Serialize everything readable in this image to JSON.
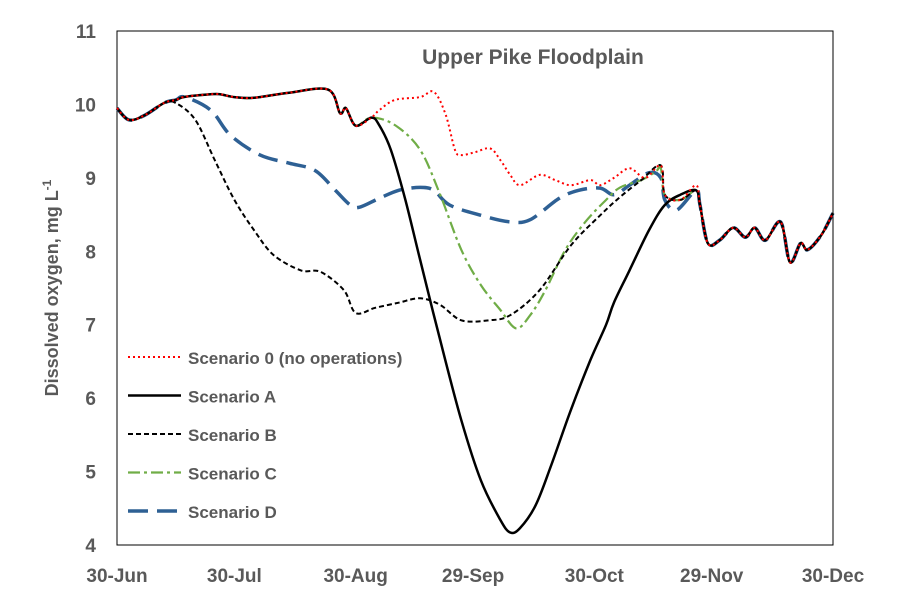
{
  "chart_data": {
    "type": "line",
    "title": "Upper Pike Floodplain",
    "xlabel": "",
    "ylabel": "Dissolved oxygen, mg L",
    "ylabel_superscript": "-1",
    "ylim": [
      4,
      11
    ],
    "yticks": [
      4,
      5,
      6,
      7,
      8,
      9,
      10,
      11
    ],
    "xlim": [
      0,
      183
    ],
    "x_unit": "days since 30-Jun",
    "xticks": [
      {
        "day": 0,
        "label": "30-Jun"
      },
      {
        "day": 30,
        "label": "30-Jul"
      },
      {
        "day": 61,
        "label": "30-Aug"
      },
      {
        "day": 91,
        "label": "29-Sep"
      },
      {
        "day": 122,
        "label": "30-Oct"
      },
      {
        "day": 152,
        "label": "29-Nov"
      },
      {
        "day": 183,
        "label": "30-Dec"
      }
    ],
    "grid": false,
    "legend_position": "left",
    "series": [
      {
        "name": "Scenario 0 (no operations)",
        "color": "#FF0000",
        "style": "dotted",
        "points": [
          [
            0,
            9.95
          ],
          [
            3,
            9.79
          ],
          [
            7,
            9.85
          ],
          [
            12,
            10.02
          ],
          [
            15,
            10.06
          ],
          [
            17,
            10.1
          ],
          [
            22,
            10.13
          ],
          [
            26,
            10.14
          ],
          [
            30,
            10.1
          ],
          [
            35,
            10.09
          ],
          [
            44,
            10.16
          ],
          [
            54,
            10.2
          ],
          [
            57,
            9.88
          ],
          [
            58.5,
            9.95
          ],
          [
            61,
            9.71
          ],
          [
            65,
            9.82
          ],
          [
            67,
            9.92
          ],
          [
            71,
            10.06
          ],
          [
            77.5,
            10.1
          ],
          [
            81,
            10.17
          ],
          [
            84,
            9.86
          ],
          [
            86.4,
            9.38
          ],
          [
            88,
            9.31
          ],
          [
            91.5,
            9.35
          ],
          [
            95.4,
            9.4
          ],
          [
            98,
            9.24
          ],
          [
            100.5,
            9.04
          ],
          [
            103,
            8.9
          ],
          [
            108,
            9.04
          ],
          [
            112,
            8.97
          ],
          [
            116,
            8.9
          ],
          [
            121,
            8.97
          ],
          [
            123.5,
            8.9
          ],
          [
            127,
            9.0
          ],
          [
            131,
            9.13
          ],
          [
            135,
            9.0
          ],
          [
            139,
            9.17
          ],
          [
            140,
            8.77
          ],
          [
            144,
            8.7
          ],
          [
            148,
            8.9
          ],
          [
            149,
            8.63
          ],
          [
            151,
            8.11
          ],
          [
            154,
            8.15
          ],
          [
            157.5,
            8.32
          ],
          [
            160.6,
            8.19
          ],
          [
            163,
            8.32
          ],
          [
            165.7,
            8.15
          ],
          [
            169.6,
            8.4
          ],
          [
            172,
            7.85
          ],
          [
            174.7,
            8.11
          ],
          [
            176.5,
            8.02
          ],
          [
            180,
            8.22
          ],
          [
            183,
            8.52
          ]
        ]
      },
      {
        "name": "Scenario A",
        "color": "#000000",
        "style": "solid",
        "points": [
          [
            0,
            9.95
          ],
          [
            3,
            9.79
          ],
          [
            7,
            9.85
          ],
          [
            12,
            10.02
          ],
          [
            15,
            10.06
          ],
          [
            17,
            10.1
          ],
          [
            22,
            10.13
          ],
          [
            26,
            10.14
          ],
          [
            30,
            10.1
          ],
          [
            35,
            10.09
          ],
          [
            44,
            10.16
          ],
          [
            54,
            10.2
          ],
          [
            57,
            9.88
          ],
          [
            58.5,
            9.95
          ],
          [
            61,
            9.71
          ],
          [
            65,
            9.82
          ],
          [
            67,
            9.72
          ],
          [
            70,
            9.38
          ],
          [
            73.7,
            8.7
          ],
          [
            77.5,
            7.88
          ],
          [
            82.6,
            6.79
          ],
          [
            88,
            5.7
          ],
          [
            93,
            4.88
          ],
          [
            98,
            4.34
          ],
          [
            100.5,
            4.17
          ],
          [
            103,
            4.23
          ],
          [
            107,
            4.54
          ],
          [
            111,
            5.09
          ],
          [
            116,
            5.84
          ],
          [
            121,
            6.52
          ],
          [
            125,
            7.0
          ],
          [
            127,
            7.3
          ],
          [
            131,
            7.74
          ],
          [
            136,
            8.29
          ],
          [
            140,
            8.63
          ],
          [
            144,
            8.77
          ],
          [
            148,
            8.83
          ],
          [
            149,
            8.63
          ],
          [
            151,
            8.11
          ],
          [
            154,
            8.15
          ],
          [
            157.5,
            8.32
          ],
          [
            160.6,
            8.19
          ],
          [
            163,
            8.32
          ],
          [
            165.7,
            8.15
          ],
          [
            169.6,
            8.4
          ],
          [
            172,
            7.85
          ],
          [
            174.7,
            8.11
          ],
          [
            176.5,
            8.02
          ],
          [
            180,
            8.22
          ],
          [
            183,
            8.52
          ]
        ]
      },
      {
        "name": "Scenario B",
        "color": "#000000",
        "style": "dashed",
        "points": [
          [
            0,
            9.95
          ],
          [
            3,
            9.79
          ],
          [
            7,
            9.85
          ],
          [
            12,
            10.02
          ],
          [
            15,
            10.02
          ],
          [
            20,
            9.79
          ],
          [
            25,
            9.24
          ],
          [
            30,
            8.7
          ],
          [
            35,
            8.29
          ],
          [
            40,
            7.95
          ],
          [
            47,
            7.74
          ],
          [
            52,
            7.72
          ],
          [
            58,
            7.47
          ],
          [
            61,
            7.16
          ],
          [
            66,
            7.23
          ],
          [
            72,
            7.3
          ],
          [
            77.5,
            7.36
          ],
          [
            82.6,
            7.27
          ],
          [
            88,
            7.06
          ],
          [
            95,
            7.06
          ],
          [
            100.5,
            7.13
          ],
          [
            108,
            7.47
          ],
          [
            116,
            8.08
          ],
          [
            123.5,
            8.49
          ],
          [
            128.6,
            8.74
          ],
          [
            134,
            8.97
          ],
          [
            139,
            9.17
          ],
          [
            140,
            8.77
          ],
          [
            144,
            8.7
          ],
          [
            148,
            8.83
          ],
          [
            149,
            8.63
          ],
          [
            151,
            8.11
          ],
          [
            154,
            8.15
          ],
          [
            157.5,
            8.32
          ],
          [
            160.6,
            8.19
          ],
          [
            163,
            8.32
          ],
          [
            165.7,
            8.15
          ],
          [
            169.6,
            8.4
          ],
          [
            172,
            7.85
          ],
          [
            174.7,
            8.11
          ],
          [
            176.5,
            8.02
          ],
          [
            180,
            8.22
          ],
          [
            183,
            8.52
          ]
        ]
      },
      {
        "name": "Scenario C",
        "color": "#70AD47",
        "style": "dashdot",
        "points": [
          [
            0,
            9.95
          ],
          [
            3,
            9.79
          ],
          [
            7,
            9.85
          ],
          [
            12,
            10.02
          ],
          [
            15,
            10.06
          ],
          [
            17,
            10.1
          ],
          [
            22,
            10.13
          ],
          [
            26,
            10.14
          ],
          [
            30,
            10.1
          ],
          [
            35,
            10.09
          ],
          [
            44,
            10.16
          ],
          [
            54,
            10.2
          ],
          [
            57,
            9.88
          ],
          [
            58.5,
            9.95
          ],
          [
            61,
            9.71
          ],
          [
            65,
            9.82
          ],
          [
            71,
            9.72
          ],
          [
            77.5,
            9.38
          ],
          [
            82.6,
            8.77
          ],
          [
            88,
            8.02
          ],
          [
            93,
            7.54
          ],
          [
            98,
            7.2
          ],
          [
            102,
            6.95
          ],
          [
            105.6,
            7.13
          ],
          [
            109.5,
            7.47
          ],
          [
            114.6,
            8.02
          ],
          [
            119.7,
            8.4
          ],
          [
            125,
            8.7
          ],
          [
            128.6,
            8.87
          ],
          [
            134,
            8.97
          ],
          [
            137.6,
            9.08
          ],
          [
            139,
            9.13
          ],
          [
            140,
            8.77
          ],
          [
            144,
            8.7
          ],
          [
            148,
            8.83
          ],
          [
            149,
            8.63
          ],
          [
            151,
            8.11
          ],
          [
            154,
            8.15
          ],
          [
            157.5,
            8.32
          ],
          [
            160.6,
            8.19
          ],
          [
            163,
            8.32
          ],
          [
            165.7,
            8.15
          ],
          [
            169.6,
            8.4
          ],
          [
            172,
            7.85
          ],
          [
            174.7,
            8.11
          ],
          [
            176.5,
            8.02
          ],
          [
            180,
            8.22
          ],
          [
            183,
            8.52
          ]
        ]
      },
      {
        "name": "Scenario D",
        "color": "#2E6094",
        "style": "longdash",
        "points": [
          [
            0,
            9.95
          ],
          [
            3,
            9.79
          ],
          [
            7,
            9.85
          ],
          [
            12,
            10.02
          ],
          [
            15,
            10.06
          ],
          [
            17.4,
            10.1
          ],
          [
            24,
            9.92
          ],
          [
            29,
            9.58
          ],
          [
            36.6,
            9.31
          ],
          [
            44,
            9.2
          ],
          [
            50.6,
            9.1
          ],
          [
            55.8,
            8.83
          ],
          [
            59.6,
            8.63
          ],
          [
            62,
            8.6
          ],
          [
            67,
            8.72
          ],
          [
            72,
            8.83
          ],
          [
            77.5,
            8.87
          ],
          [
            81,
            8.83
          ],
          [
            85,
            8.63
          ],
          [
            93,
            8.49
          ],
          [
            100.5,
            8.4
          ],
          [
            105.6,
            8.43
          ],
          [
            113,
            8.72
          ],
          [
            118,
            8.83
          ],
          [
            123.5,
            8.86
          ],
          [
            127,
            8.77
          ],
          [
            131,
            8.9
          ],
          [
            136,
            9.07
          ],
          [
            139,
            9.0
          ],
          [
            140,
            8.7
          ],
          [
            143,
            8.56
          ],
          [
            148,
            8.83
          ],
          [
            149,
            8.63
          ],
          [
            151,
            8.11
          ],
          [
            154,
            8.15
          ],
          [
            157.5,
            8.32
          ],
          [
            160.6,
            8.19
          ],
          [
            163,
            8.32
          ],
          [
            165.7,
            8.15
          ],
          [
            169.6,
            8.4
          ],
          [
            172,
            7.85
          ],
          [
            174.7,
            8.11
          ],
          [
            176.5,
            8.02
          ],
          [
            180,
            8.22
          ],
          [
            183,
            8.52
          ]
        ]
      }
    ]
  }
}
